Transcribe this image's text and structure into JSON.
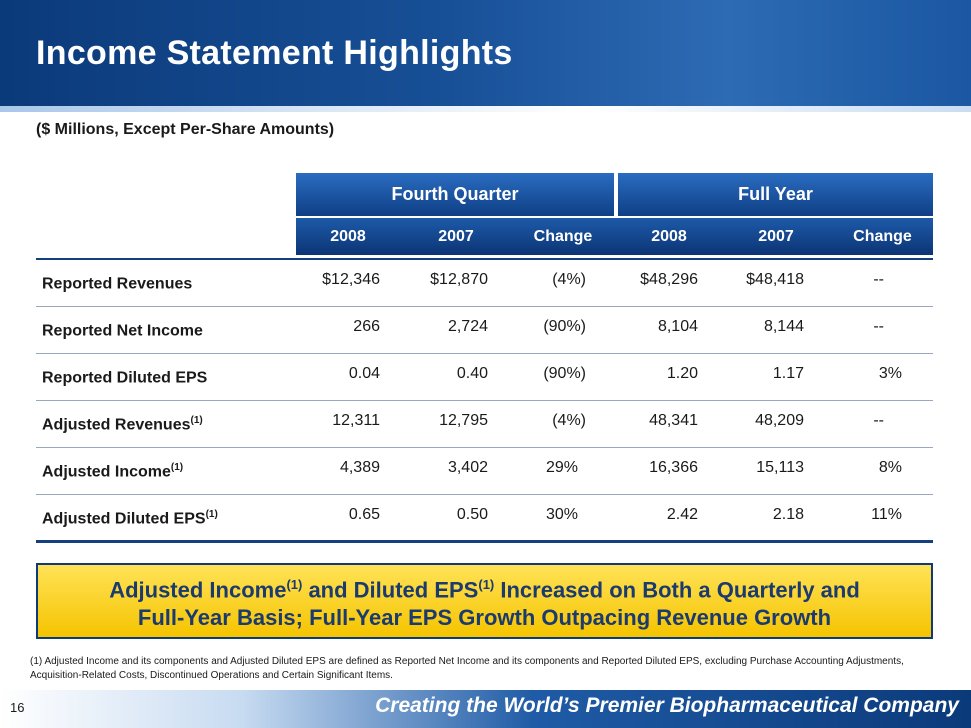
{
  "title": "Income Statement Highlights",
  "subtitle": "($ Millions, Except Per-Share Amounts)",
  "table": {
    "groups": {
      "quarter": "Fourth Quarter",
      "year": "Full Year"
    },
    "columns": [
      "2008",
      "2007",
      "Change",
      "2008",
      "2007",
      "Change"
    ],
    "rows": [
      {
        "label": "Reported Revenues",
        "footnote": "",
        "values": [
          "$12,346",
          "$12,870",
          "(4%)",
          "$48,296",
          "$48,418",
          "--"
        ]
      },
      {
        "label": "Reported Net Income",
        "footnote": "",
        "values": [
          "266",
          "2,724",
          "(90%)",
          "8,104",
          "8,144",
          "--"
        ]
      },
      {
        "label": "Reported Diluted EPS",
        "footnote": "",
        "values": [
          "0.04",
          "0.40",
          "(90%)",
          "1.20",
          "1.17",
          "3%"
        ]
      },
      {
        "label": "Adjusted Revenues",
        "footnote": "(1)",
        "values": [
          "12,311",
          "12,795",
          "(4%)",
          "48,341",
          "48,209",
          "--"
        ]
      },
      {
        "label": "Adjusted Income",
        "footnote": "(1)",
        "values": [
          "4,389",
          "3,402",
          "29%",
          "16,366",
          "15,113",
          "8%"
        ]
      },
      {
        "label": "Adjusted Diluted EPS",
        "footnote": "(1)",
        "values": [
          "0.65",
          "0.50",
          "30%",
          "2.42",
          "2.18",
          "11%"
        ]
      }
    ]
  },
  "callout": {
    "part1": "Adjusted Income",
    "sup1": "(1)",
    "part2": " and Diluted EPS",
    "sup2": "(1)",
    "part3": " Increased on Both a Quarterly and",
    "line2": "Full-Year Basis; Full-Year EPS Growth Outpacing Revenue Growth"
  },
  "footnote": "(1) Adjusted Income and its components and Adjusted Diluted EPS are defined as Reported Net Income and its components and Reported Diluted EPS, excluding Purchase Accounting Adjustments, Acquisition-Related Costs, Discontinued Operations and Certain Significant Items.",
  "page_number": "16",
  "footer_tagline": "Creating the World’s Premier Biopharmaceutical Company",
  "colors": {
    "navy": "#0c3575",
    "accent_blue": "#1d5aa8",
    "callout_yellow": "#f5c400"
  }
}
